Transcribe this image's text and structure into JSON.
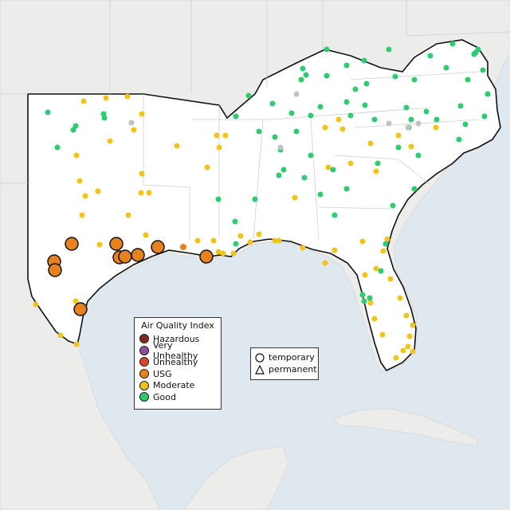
{
  "legend": {
    "title": "Air Quality Index",
    "categories": [
      {
        "label": "Hazardous",
        "color": "#7e2a1e"
      },
      {
        "label": "Very Unhealthy",
        "color": "#8c4fa0"
      },
      {
        "label": "Unhealthy",
        "color": "#e0452b"
      },
      {
        "label": "USG",
        "color": "#e8821e"
      },
      {
        "label": "Moderate",
        "color": "#f0c419"
      },
      {
        "label": "Good",
        "color": "#2ecc71"
      }
    ]
  },
  "monitor_types": {
    "temporary": "temporary",
    "permanent": "permanent"
  },
  "colors": {
    "water": "#dfe7ef",
    "land": "#ececea",
    "region_land": "#ffffff",
    "no_data_marker": "#c2c2c2",
    "usg_large_marker": "#e8821e"
  }
}
